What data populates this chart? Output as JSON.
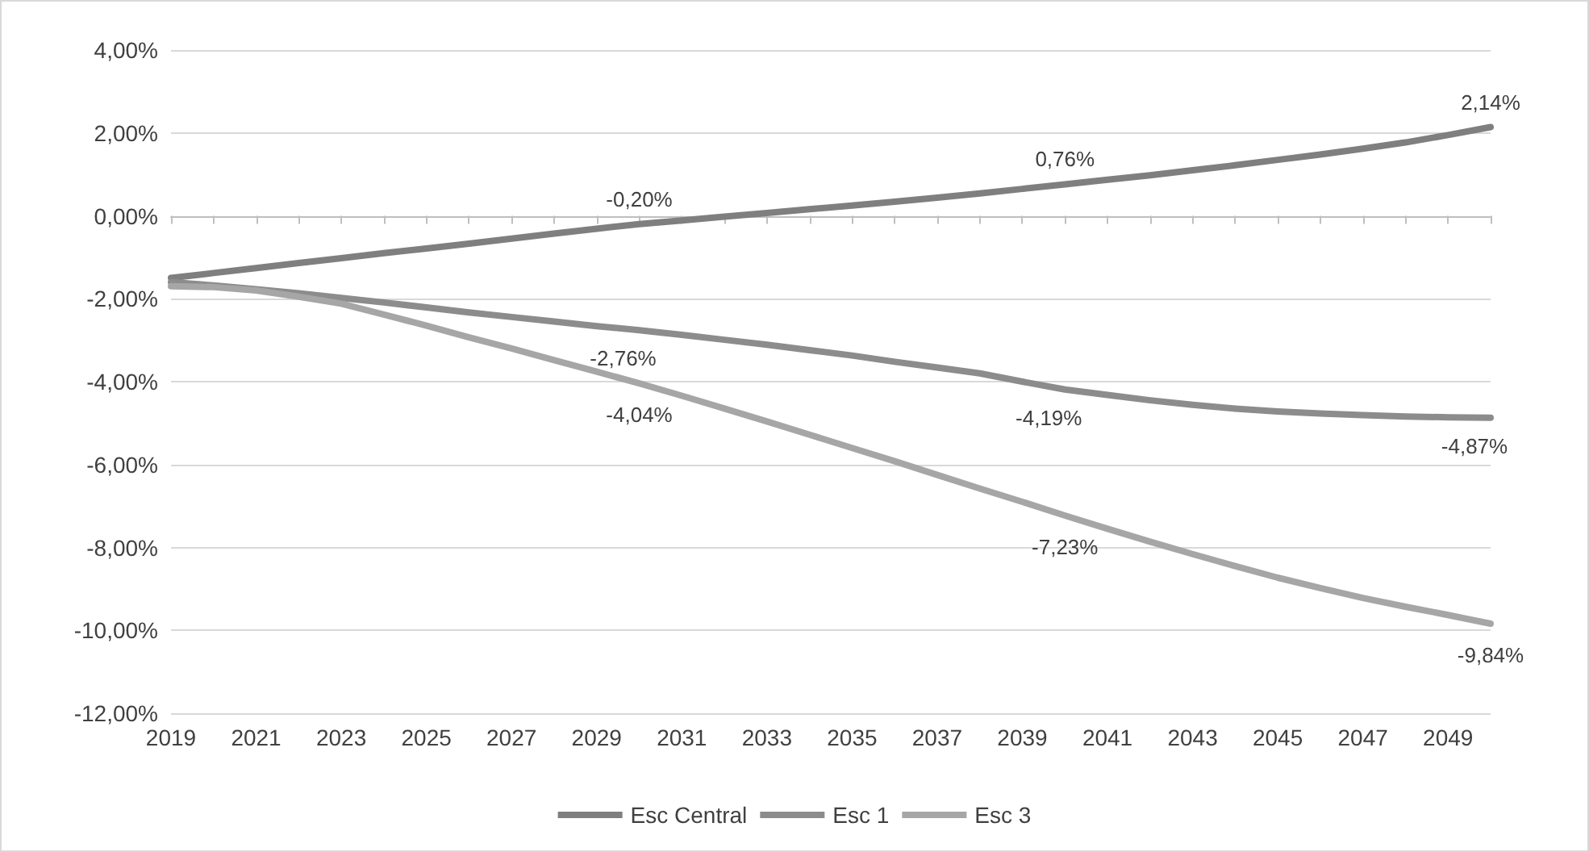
{
  "chart_data": {
    "type": "line",
    "categories": [
      "2019",
      null,
      "2021",
      null,
      "2023",
      null,
      "2025",
      null,
      "2027",
      null,
      "2029",
      null,
      "2031",
      null,
      "2033",
      null,
      "2035",
      null,
      "2037",
      null,
      "2039",
      null,
      "2041",
      null,
      "2043",
      null,
      "2045",
      null,
      "2047",
      null,
      "2049",
      null
    ],
    "series": [
      {
        "name": "Esc Central",
        "color": "#7f7f7f",
        "values": [
          -1.5,
          -1.38,
          -1.26,
          -1.14,
          -1.02,
          -0.9,
          -0.79,
          -0.67,
          -0.55,
          -0.43,
          -0.31,
          -0.2,
          -0.11,
          -0.02,
          0.07,
          0.16,
          0.25,
          0.34,
          0.44,
          0.54,
          0.65,
          0.76,
          0.87,
          0.98,
          1.1,
          1.22,
          1.35,
          1.48,
          1.62,
          1.77,
          1.95,
          2.14
        ],
        "value_labels": [
          null,
          null,
          null,
          null,
          null,
          null,
          null,
          null,
          null,
          null,
          null,
          "-0,20%",
          null,
          null,
          null,
          null,
          null,
          null,
          null,
          null,
          null,
          "0,76%",
          null,
          null,
          null,
          null,
          null,
          null,
          null,
          null,
          null,
          "2,14%"
        ]
      },
      {
        "name": "Esc 1",
        "color": "#8c8c8c",
        "values": [
          -1.6,
          -1.68,
          -1.77,
          -1.87,
          -1.98,
          -2.09,
          -2.21,
          -2.33,
          -2.44,
          -2.55,
          -2.66,
          -2.76,
          -2.87,
          -2.99,
          -3.11,
          -3.24,
          -3.37,
          -3.52,
          -3.66,
          -3.8,
          -4.0,
          -4.19,
          -4.32,
          -4.45,
          -4.56,
          -4.65,
          -4.72,
          -4.77,
          -4.81,
          -4.84,
          -4.86,
          -4.87
        ],
        "value_labels": [
          null,
          null,
          null,
          null,
          null,
          null,
          null,
          null,
          null,
          null,
          null,
          "-2,76%",
          null,
          null,
          null,
          null,
          null,
          null,
          null,
          null,
          null,
          "-4,19%",
          null,
          null,
          null,
          null,
          null,
          null,
          null,
          null,
          null,
          "-4,87%"
        ]
      },
      {
        "name": "Esc 3",
        "color": "#a6a6a6",
        "values": [
          -1.7,
          -1.72,
          -1.8,
          -1.95,
          -2.12,
          -2.38,
          -2.65,
          -2.93,
          -3.2,
          -3.48,
          -3.76,
          -4.04,
          -4.34,
          -4.65,
          -4.96,
          -5.28,
          -5.6,
          -5.92,
          -6.25,
          -6.58,
          -6.9,
          -7.23,
          -7.55,
          -7.86,
          -8.16,
          -8.45,
          -8.73,
          -8.98,
          -9.22,
          -9.43,
          -9.63,
          -9.84
        ],
        "value_labels": [
          null,
          null,
          null,
          null,
          null,
          null,
          null,
          null,
          null,
          null,
          null,
          "-4,04%",
          null,
          null,
          null,
          null,
          null,
          null,
          null,
          null,
          null,
          "-7,23%",
          null,
          null,
          null,
          null,
          null,
          null,
          null,
          null,
          null,
          "-9,84%"
        ]
      }
    ],
    "ylim": [
      -12,
      4
    ],
    "yticks": [
      {
        "value": -12,
        "label": "-12,00%"
      },
      {
        "value": -10,
        "label": "-10,00%"
      },
      {
        "value": -8,
        "label": "-8,00%"
      },
      {
        "value": -6,
        "label": "-6,00%"
      },
      {
        "value": -4,
        "label": "-4,00%"
      },
      {
        "value": -2,
        "label": "-2,00%"
      },
      {
        "value": 0,
        "label": "0,00%"
      },
      {
        "value": 2,
        "label": "2,00%"
      },
      {
        "value": 4,
        "label": "4,00%"
      }
    ],
    "grid": "y",
    "legend": "bottom",
    "marker": "none",
    "line_style": "solid"
  }
}
